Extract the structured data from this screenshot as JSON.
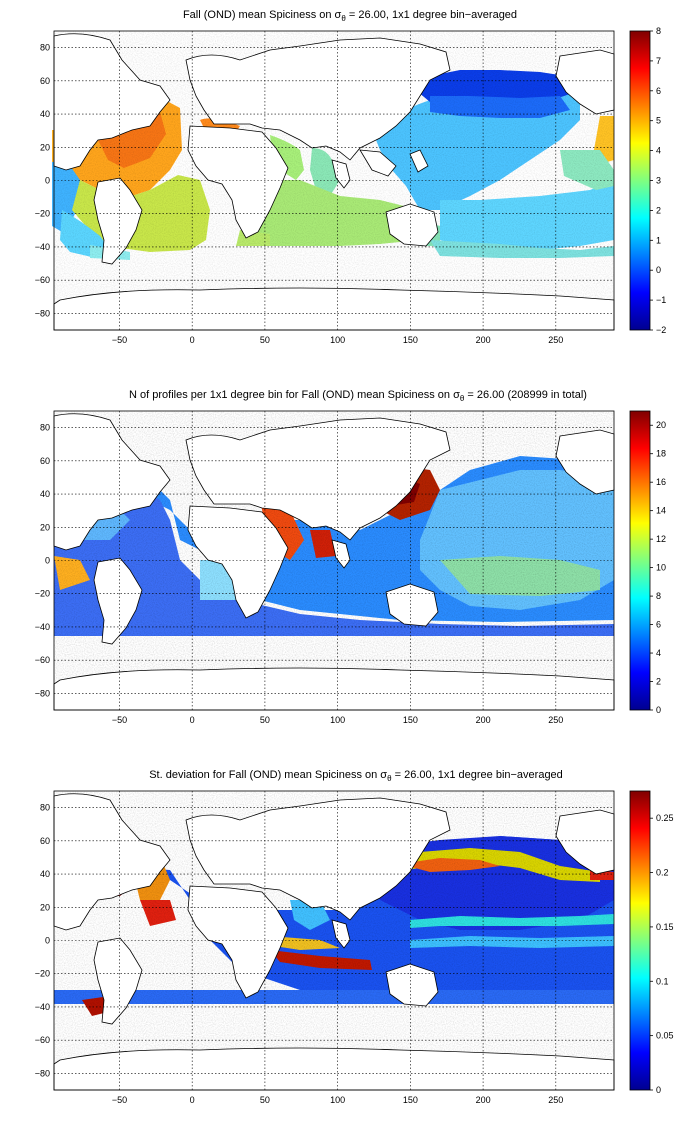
{
  "panels": [
    {
      "title_pre": "Fall (OND) mean Spiciness on σ",
      "title_sub": "θ",
      "title_post": " = 26.00, 1x1 degree bin−averaged",
      "colormap": "jet",
      "colorbar_ticks": [
        "8",
        "7",
        "6",
        "5",
        "4",
        "3",
        "2",
        "1",
        "0",
        "−1",
        "−2"
      ],
      "map_fields": "mean-spiciness"
    },
    {
      "title_pre": "N of profiles per 1x1 degree bin for Fall (OND) mean Spiciness on σ",
      "title_sub": "θ",
      "title_post": " = 26.00 (208999 in total)",
      "colormap": "jet",
      "colorbar_ticks": [
        "20",
        "18",
        "16",
        "14",
        "12",
        "10",
        "8",
        "6",
        "4",
        "2",
        "0"
      ],
      "map_fields": "profile-count"
    },
    {
      "title_pre": "St. deviation for Fall (OND) mean Spiciness on σ",
      "title_sub": "θ",
      "title_post": " = 26.00, 1x1 degree bin−averaged",
      "colormap": "jet",
      "colorbar_ticks": [
        "0.25",
        "0.2",
        "0.15",
        "0.1",
        "0.05",
        "0"
      ],
      "map_fields": "std-deviation"
    }
  ],
  "x_ticks": [
    "−50",
    "0",
    "50",
    "100",
    "150",
    "200",
    "250"
  ],
  "y_ticks": [
    "80",
    "60",
    "40",
    "20",
    "0",
    "−20",
    "−40",
    "−60",
    "−80"
  ],
  "xlim": [
    -95,
    290
  ],
  "ylim": [
    -90,
    90
  ],
  "colorbar_ranges": [
    [
      -2,
      8
    ],
    [
      0,
      21
    ],
    [
      0,
      0.275
    ]
  ]
}
